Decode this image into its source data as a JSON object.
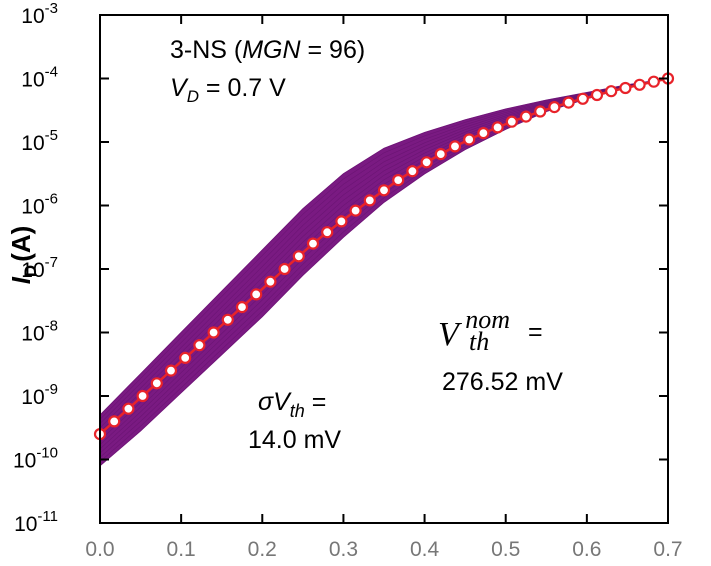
{
  "chart_data": {
    "type": "line",
    "title": "",
    "xlabel": "",
    "ylabel": {
      "main": "I",
      "sub": "D",
      "unit": "(A)"
    },
    "xlim": [
      0.0,
      0.7
    ],
    "ylim_log10": [
      -11,
      -3
    ],
    "yscale": "log",
    "grid": false,
    "x_ticks": [
      "0.0",
      "0.1",
      "0.2",
      "0.3",
      "0.4",
      "0.5",
      "0.6",
      "0.7"
    ],
    "y_ticks": [
      {
        "base": "10",
        "exp": "-3"
      },
      {
        "base": "10",
        "exp": "-4"
      },
      {
        "base": "10",
        "exp": "-5"
      },
      {
        "base": "10",
        "exp": "-6"
      },
      {
        "base": "10",
        "exp": "-7"
      },
      {
        "base": "10",
        "exp": "-8"
      },
      {
        "base": "10",
        "exp": "-9"
      },
      {
        "base": "10",
        "exp": "-10"
      },
      {
        "base": "10",
        "exp": "-11"
      }
    ],
    "annotations": {
      "device": {
        "prefix": "3-NS (",
        "italic": "MGN",
        "suffix": " = 96)"
      },
      "vd": {
        "v": "V",
        "sub": "D",
        "rest": " = 0.7 V"
      },
      "vth_nom": {
        "v": "V",
        "sup": "nom",
        "sub": "th",
        "eq": " =",
        "value": "276.52 mV"
      },
      "sigma": {
        "sigma": "σV",
        "sub": "th",
        "eq": " =",
        "value": "14.0 mV"
      }
    },
    "colors": {
      "band": "#7a1a82",
      "nominal": "#e8232a",
      "marker_fill": "#ffffff"
    },
    "series": [
      {
        "id": "nominal",
        "x": [
          0.0,
          0.0175,
          0.035,
          0.0525,
          0.07,
          0.0875,
          0.105,
          0.1225,
          0.14,
          0.1575,
          0.175,
          0.1925,
          0.21,
          0.2275,
          0.245,
          0.2625,
          0.28,
          0.2975,
          0.315,
          0.3325,
          0.35,
          0.3675,
          0.385,
          0.4025,
          0.42,
          0.4375,
          0.455,
          0.4725,
          0.49,
          0.5075,
          0.525,
          0.5425,
          0.56,
          0.5775,
          0.595,
          0.6125,
          0.63,
          0.6475,
          0.665,
          0.6825,
          0.7
        ],
        "log10_y": [
          -9.6,
          -9.4,
          -9.2,
          -9.0,
          -8.8,
          -8.6,
          -8.4,
          -8.2,
          -8.0,
          -7.8,
          -7.6,
          -7.4,
          -7.2,
          -7.0,
          -6.8,
          -6.6,
          -6.42,
          -6.25,
          -6.08,
          -5.92,
          -5.76,
          -5.6,
          -5.46,
          -5.32,
          -5.19,
          -5.07,
          -4.96,
          -4.86,
          -4.77,
          -4.68,
          -4.6,
          -4.52,
          -4.45,
          -4.38,
          -4.32,
          -4.26,
          -4.2,
          -4.15,
          -4.1,
          -4.05,
          -4.0
        ]
      },
      {
        "id": "variation_upper",
        "x": [
          0.0,
          0.05,
          0.1,
          0.15,
          0.2,
          0.25,
          0.3,
          0.35,
          0.4,
          0.45,
          0.5,
          0.55,
          0.6,
          0.65,
          0.7
        ],
        "log10_y": [
          -9.3,
          -8.65,
          -8.0,
          -7.35,
          -6.7,
          -6.05,
          -5.5,
          -5.1,
          -4.85,
          -4.65,
          -4.48,
          -4.34,
          -4.22,
          -4.1,
          -4.0
        ]
      },
      {
        "id": "variation_lower",
        "x": [
          0.0,
          0.05,
          0.1,
          0.15,
          0.2,
          0.25,
          0.3,
          0.35,
          0.4,
          0.45,
          0.5,
          0.55,
          0.6,
          0.65,
          0.7
        ],
        "log10_y": [
          -10.1,
          -9.55,
          -8.95,
          -8.35,
          -7.75,
          -7.1,
          -6.5,
          -5.95,
          -5.5,
          -5.12,
          -4.8,
          -4.52,
          -4.32,
          -4.14,
          -4.0
        ]
      }
    ]
  }
}
